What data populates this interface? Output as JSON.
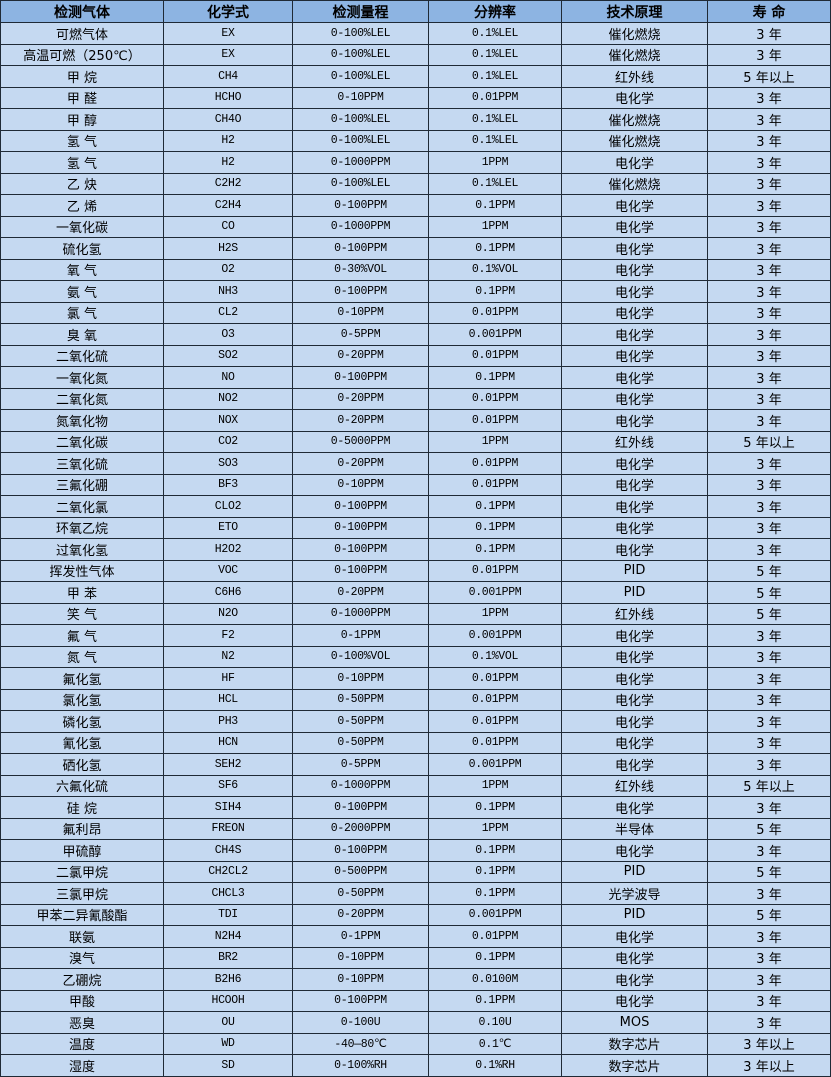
{
  "header": [
    "检测气体",
    "化学式",
    "检测量程",
    "分辨率",
    "技术原理",
    "寿 命"
  ],
  "rows": [
    [
      "可燃气体",
      "EX",
      "0-100%LEL",
      "0.1%LEL",
      "催化燃烧",
      "3 年"
    ],
    [
      "高温可燃（250℃）",
      "EX",
      "0-100%LEL",
      "0.1%LEL",
      "催化燃烧",
      "3 年"
    ],
    [
      "甲 烷",
      "CH4",
      "0-100%LEL",
      "0.1%LEL",
      "红外线",
      "5 年以上"
    ],
    [
      "甲 醛",
      "HCHO",
      "0-10PPM",
      "0.01PPM",
      "电化学",
      "3 年"
    ],
    [
      "甲 醇",
      "CH4O",
      "0-100%LEL",
      "0.1%LEL",
      "催化燃烧",
      "3 年"
    ],
    [
      "氢 气",
      "H2",
      "0-100%LEL",
      "0.1%LEL",
      "催化燃烧",
      "3 年"
    ],
    [
      "氢 气",
      "H2",
      "0-1000PPM",
      "1PPM",
      "电化学",
      "3 年"
    ],
    [
      "乙 炔",
      "C2H2",
      "0-100%LEL",
      "0.1%LEL",
      "催化燃烧",
      "3 年"
    ],
    [
      "乙 烯",
      "C2H4",
      "0-100PPM",
      "0.1PPM",
      "电化学",
      "3 年"
    ],
    [
      "一氧化碳",
      "CO",
      "0-1000PPM",
      "1PPM",
      "电化学",
      "3 年"
    ],
    [
      "硫化氢",
      "H2S",
      "0-100PPM",
      "0.1PPM",
      "电化学",
      "3 年"
    ],
    [
      "氧 气",
      "O2",
      "0-30%VOL",
      "0.1%VOL",
      "电化学",
      "3 年"
    ],
    [
      "氨 气",
      "NH3",
      "0-100PPM",
      "0.1PPM",
      "电化学",
      "3 年"
    ],
    [
      "氯 气",
      "CL2",
      "0-10PPM",
      "0.01PPM",
      "电化学",
      "3 年"
    ],
    [
      "臭 氧",
      "O3",
      "0-5PPM",
      "0.001PPM",
      "电化学",
      "3 年"
    ],
    [
      "二氧化硫",
      "SO2",
      "0-20PPM",
      "0.01PPM",
      "电化学",
      "3 年"
    ],
    [
      "一氧化氮",
      "NO",
      "0-100PPM",
      "0.1PPM",
      "电化学",
      "3 年"
    ],
    [
      "二氧化氮",
      "NO2",
      "0-20PPM",
      "0.01PPM",
      "电化学",
      "3 年"
    ],
    [
      "氮氧化物",
      "NOX",
      "0-20PPM",
      "0.01PPM",
      "电化学",
      "3 年"
    ],
    [
      "二氧化碳",
      "CO2",
      "0-5000PPM",
      "1PPM",
      "红外线",
      "5 年以上"
    ],
    [
      "三氧化硫",
      "SO3",
      "0-20PPM",
      "0.01PPM",
      "电化学",
      "3 年"
    ],
    [
      "三氟化硼",
      "BF3",
      "0-10PPM",
      "0.01PPM",
      "电化学",
      "3 年"
    ],
    [
      "二氧化氯",
      "CLO2",
      "0-100PPM",
      "0.1PPM",
      "电化学",
      "3 年"
    ],
    [
      "环氧乙烷",
      "ETO",
      "0-100PPM",
      "0.1PPM",
      "电化学",
      "3 年"
    ],
    [
      "过氧化氢",
      "H2O2",
      "0-100PPM",
      "0.1PPM",
      "电化学",
      "3 年"
    ],
    [
      "挥发性气体",
      "VOC",
      "0-100PPM",
      "0.01PPM",
      "PID",
      "5 年"
    ],
    [
      "甲 苯",
      "C6H6",
      "0-20PPM",
      "0.001PPM",
      "PID",
      "5 年"
    ],
    [
      "笑 气",
      "N2O",
      "0-1000PPM",
      "1PPM",
      "红外线",
      "5 年"
    ],
    [
      "氟 气",
      "F2",
      "0-1PPM",
      "0.001PPM",
      "电化学",
      "3 年"
    ],
    [
      "氮 气",
      "N2",
      "0-100%VOL",
      "0.1%VOL",
      "电化学",
      "3 年"
    ],
    [
      "氟化氢",
      "HF",
      "0-10PPM",
      "0.01PPM",
      "电化学",
      "3 年"
    ],
    [
      "氯化氢",
      "HCL",
      "0-50PPM",
      "0.01PPM",
      "电化学",
      "3 年"
    ],
    [
      "磷化氢",
      "PH3",
      "0-50PPM",
      "0.01PPM",
      "电化学",
      "3 年"
    ],
    [
      "氰化氢",
      "HCN",
      "0-50PPM",
      "0.01PPM",
      "电化学",
      "3 年"
    ],
    [
      "硒化氢",
      "SEH2",
      "0-5PPM",
      "0.001PPM",
      "电化学",
      "3 年"
    ],
    [
      "六氟化硫",
      "SF6",
      "0-1000PPM",
      "1PPM",
      "红外线",
      "5 年以上"
    ],
    [
      "硅 烷",
      "SIH4",
      "0-100PPM",
      "0.1PPM",
      "电化学",
      "3 年"
    ],
    [
      "氟利昂",
      "FREON",
      "0-2000PPM",
      "1PPM",
      "半导体",
      "5 年"
    ],
    [
      "甲硫醇",
      "CH4S",
      "0-100PPM",
      "0.1PPM",
      "电化学",
      "3 年"
    ],
    [
      "二氯甲烷",
      "CH2CL2",
      "0-500PPM",
      "0.1PPM",
      "PID",
      "5 年"
    ],
    [
      "三氯甲烷",
      "CHCL3",
      "0-50PPM",
      "0.1PPM",
      "光学波导",
      "3 年"
    ],
    [
      "甲苯二异氰酸酯",
      "TDI",
      "0-20PPM",
      "0.001PPM",
      "PID",
      "5 年"
    ],
    [
      "联氨",
      "N2H4",
      "0-1PPM",
      "0.01PPM",
      "电化学",
      "3 年"
    ],
    [
      "溴气",
      "BR2",
      "0-10PPM",
      "0.1PPM",
      "电化学",
      "3 年"
    ],
    [
      "乙硼烷",
      "B2H6",
      "0-10PPM",
      "0.0100M",
      "电化学",
      "3 年"
    ],
    [
      "甲酸",
      "HCOOH",
      "0-100PPM",
      "0.1PPM",
      "电化学",
      "3 年"
    ],
    [
      "恶臭",
      "OU",
      "0-100U",
      "0.10U",
      "MOS",
      "3 年"
    ],
    [
      "温度",
      "WD",
      "-40—80℃",
      "0.1℃",
      "数字芯片",
      "3 年以上"
    ],
    [
      "湿度",
      "SD",
      "0-100%RH",
      "0.1%RH",
      "数字芯片",
      "3 年以上"
    ]
  ],
  "colors": {
    "header_bg": "#8db4e2",
    "row_bg": "#c5d9f1",
    "border": "#1f2a36"
  }
}
